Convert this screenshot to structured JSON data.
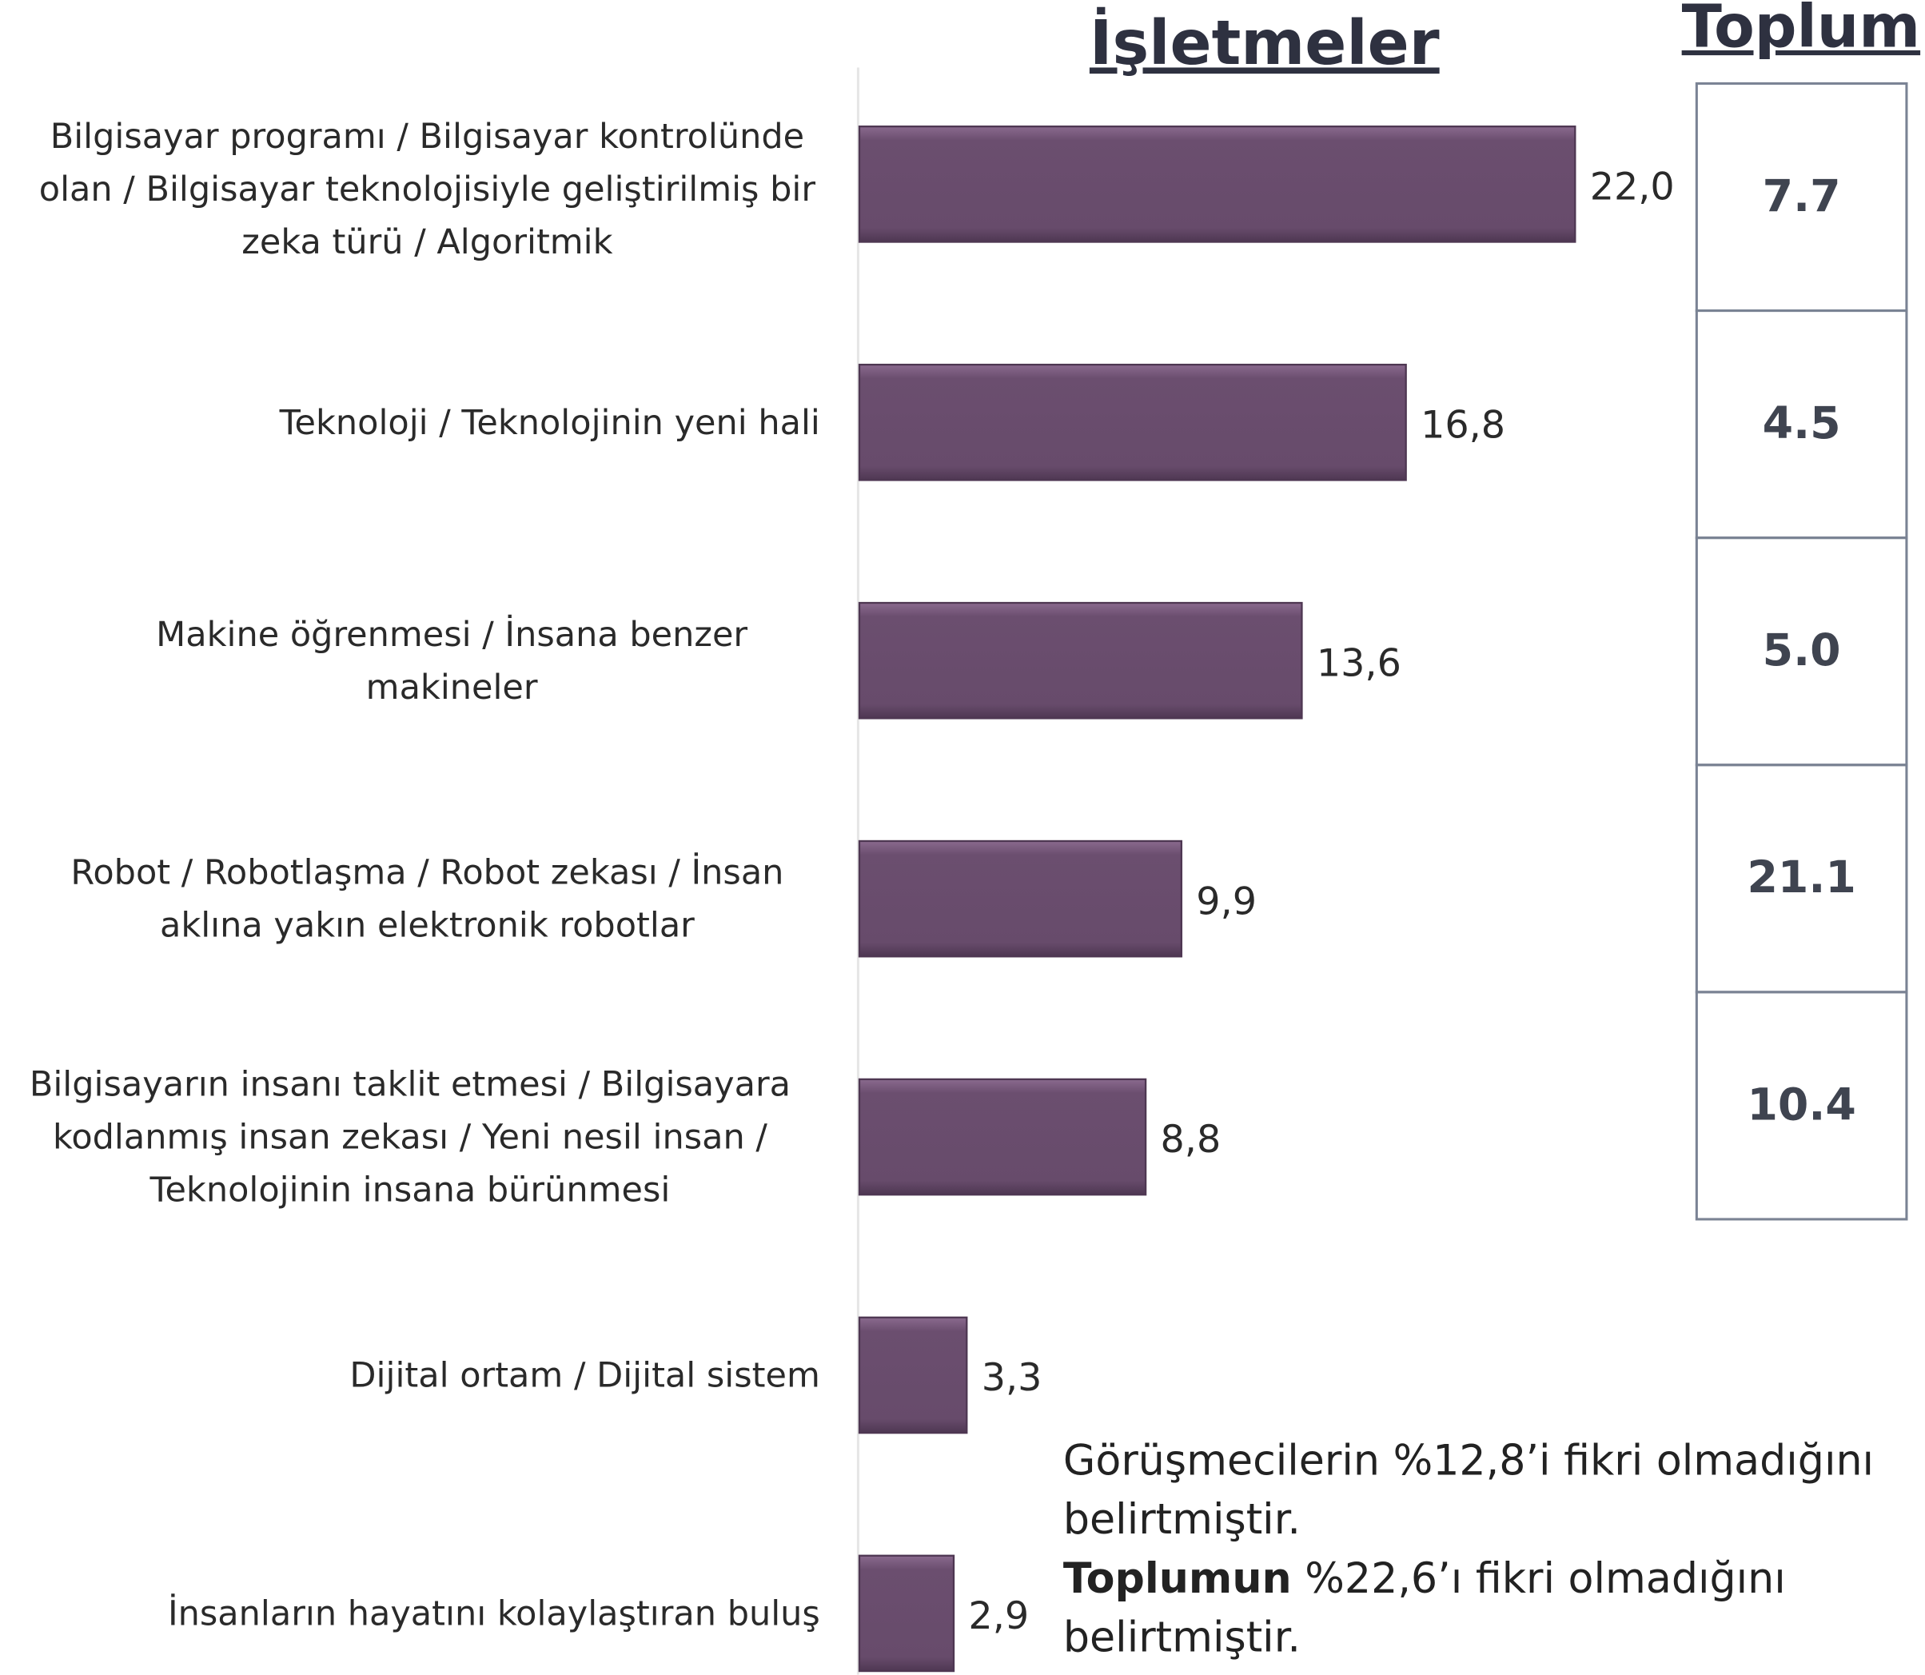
{
  "chart_data": {
    "type": "bar",
    "orientation": "horizontal",
    "title": "İşletmeler",
    "color": "#6b4e6f",
    "categories": [
      "Bilgisayar programı / Bilgisayar kontrolünde olan / Bilgisayar teknolojisiyle geliştirilmiş bir zeka türü / Algoritmik",
      "Teknoloji / Teknolojinin yeni hali",
      "Makine öğrenmesi / İnsana benzer makineler",
      "Robot / Robotlaşma / Robot zekası / İnsan aklına yakın elektronik robotlar",
      "Bilgisayarın insanı taklit etmesi / Bilgisayara kodlanmış insan zekası / Yeni nesil insan / Teknolojinin insana bürünmesi",
      "Dijital ortam / Dijital sistem",
      "İnsanların hayatını kolaylaştıran buluş"
    ],
    "values": [
      22.0,
      16.8,
      13.6,
      9.9,
      8.8,
      3.3,
      2.9
    ],
    "value_labels": [
      "22,0",
      "16,8",
      "13,6",
      "9,9",
      "8,8",
      "3,3",
      "2,9"
    ]
  },
  "toplum": {
    "title": "Toplum",
    "values": [
      7.7,
      4.5,
      5.0,
      21.1,
      10.4
    ],
    "value_labels": [
      "7.7",
      "4.5",
      "5.0",
      "21.1",
      "10.4"
    ]
  },
  "note": {
    "line1": "Görüşmecilerin %12,8’i fikri olmadığını belirtmiştir.",
    "bold": "Toplumun",
    "rest": " %22,6’ı fikri olmadığını belirtmiştir."
  }
}
